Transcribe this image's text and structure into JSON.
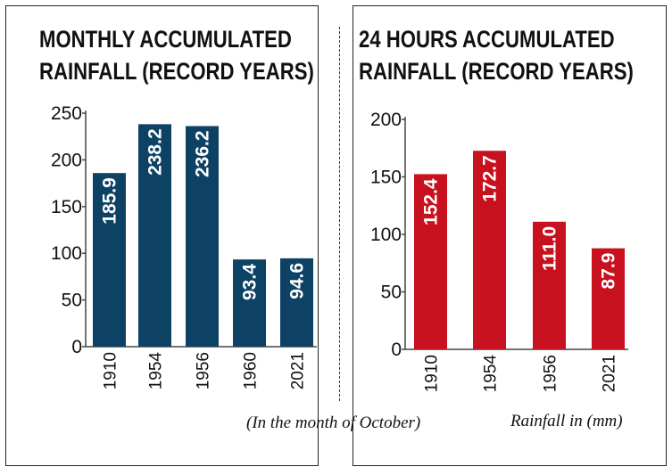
{
  "left": {
    "title_line1": "MONTHLY ACCUMULATED",
    "title_line2": "RAINFALL (RECORD YEARS)",
    "note": "(In the month of October)"
  },
  "right": {
    "title_line1": "24 HOURS ACCUMULATED",
    "title_line2": "RAINFALL (RECORD YEARS)",
    "note": "Rainfall in (mm)"
  },
  "colors": {
    "left_bar": "#0d4264",
    "right_bar": "#c8111e"
  },
  "chart_data": [
    {
      "type": "bar",
      "title": "MONTHLY ACCUMULATED RAINFALL (RECORD YEARS)",
      "categories": [
        "1910",
        "1954",
        "1956",
        "1960",
        "2021"
      ],
      "values": [
        185.9,
        238.2,
        236.2,
        93.4,
        94.6
      ],
      "value_labels": [
        "185.9",
        "238.2",
        "236.2",
        "93.4",
        "94.6"
      ],
      "ylim": [
        0,
        250
      ],
      "yticks": [
        0,
        50,
        100,
        150,
        200,
        250
      ],
      "annotation": "(In the month of October)",
      "grid": false,
      "legend": "none",
      "color": "#0d4264"
    },
    {
      "type": "bar",
      "title": "24 HOURS ACCUMULATED RAINFALL (RECORD YEARS)",
      "categories": [
        "1910",
        "1954",
        "1956",
        "2021"
      ],
      "values": [
        152.4,
        172.7,
        111.0,
        87.9
      ],
      "value_labels": [
        "152.4",
        "172.7",
        "111.0",
        "87.9"
      ],
      "ylim": [
        0,
        200
      ],
      "yticks": [
        0,
        50,
        100,
        150,
        200
      ],
      "annotation": "Rainfall in (mm)",
      "grid": false,
      "legend": "none",
      "color": "#c8111e"
    }
  ]
}
